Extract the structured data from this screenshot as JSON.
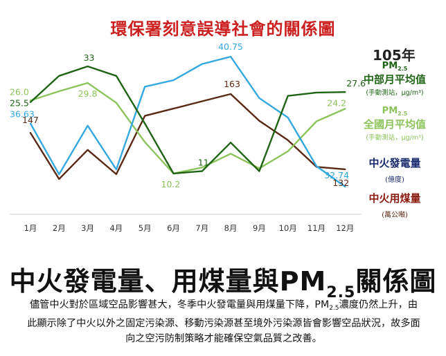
{
  "header": {
    "red_title": "環保署刻意誤導社會的關係圖"
  },
  "legend": {
    "year": "105年",
    "pm_central_pre": "PM",
    "pm_central_sub": "2.5",
    "pm_central_name": "中部月平均值",
    "pm_central_unit": "(手動測站，μg/m³)",
    "pm_national_pre": "PM",
    "pm_national_sub": "2.5",
    "pm_national_name": "全國月平均值",
    "pm_national_unit": "(手動測站，μg/m³)",
    "power_name": "中火發電量",
    "power_unit": "(億度)",
    "coal_name": "中火用煤量",
    "coal_unit": "(萬公噸)"
  },
  "footer": {
    "title_pre": "中火發電量、用煤量與PM",
    "title_sub": "2.5",
    "title_post": "關係圖",
    "desc_pre": "儘管中火對於區域空品影響甚大，冬季中火發電量與用煤量下降，PM",
    "desc_sub": "2.5",
    "desc_post": "濃度仍然上升，由此顯示除了中火以外之固定污染源、移動污染源甚至境外污染源皆會影響空品狀況，故多面向之空污防制策略才能確保空氣品質之改善。"
  },
  "colors": {
    "pm_central": "#1e6414",
    "pm_national": "#8cc35a",
    "power": "#32a8e0",
    "coal": "#5a2814",
    "title_red": "#cc1f1f",
    "legend_blue": "#1a2a6e",
    "legend_coal": "#8b1a10"
  },
  "chart_data": {
    "type": "line",
    "categories": [
      "1月",
      "2月",
      "3月",
      "4月",
      "5月",
      "6月",
      "7月",
      "8月",
      "9月",
      "10月",
      "11月",
      "12月"
    ],
    "series": [
      {
        "name": "PM2.5 中部月平均值",
        "color": "#1e6414",
        "values": [
          25.5,
          31,
          33,
          31,
          21,
          10.5,
          11,
          17,
          11,
          26.8,
          27.5,
          27.6
        ],
        "labels": [
          {
            "i": 0,
            "text": "25.5"
          },
          {
            "i": 2,
            "text": "33"
          },
          {
            "i": 6,
            "text": "11"
          },
          {
            "i": 11,
            "text": "27.6"
          }
        ]
      },
      {
        "name": "PM2.5 全國月平均值",
        "color": "#8cc35a",
        "values": [
          26.0,
          28,
          29.8,
          25.5,
          17,
          10.2,
          11.5,
          14.5,
          11.3,
          15,
          21.5,
          24.2
        ],
        "labels": [
          {
            "i": 0,
            "text": "26.0"
          },
          {
            "i": 2,
            "text": "29.8"
          },
          {
            "i": 5,
            "text": "10.2"
          },
          {
            "i": 11,
            "text": "24.2"
          }
        ]
      },
      {
        "name": "中火發電量",
        "color": "#32a8e0",
        "values": [
          36.63,
          33.5,
          36.5,
          33.8,
          38.9,
          39.3,
          40.3,
          40.75,
          38.2,
          37.0,
          34.0,
          32.74
        ],
        "labels": [
          {
            "i": 0,
            "text": "36.63"
          },
          {
            "i": 7,
            "text": "40.75"
          },
          {
            "i": 11,
            "text": "32.74"
          }
        ]
      },
      {
        "name": "中火用煤量",
        "color": "#5a2814",
        "values": [
          147,
          128,
          140,
          130,
          154,
          157,
          160,
          163,
          152,
          144,
          133,
          132
        ],
        "labels": [
          {
            "i": 0,
            "text": "147"
          },
          {
            "i": 7,
            "text": "163"
          },
          {
            "i": 11,
            "text": "132"
          }
        ]
      }
    ]
  }
}
